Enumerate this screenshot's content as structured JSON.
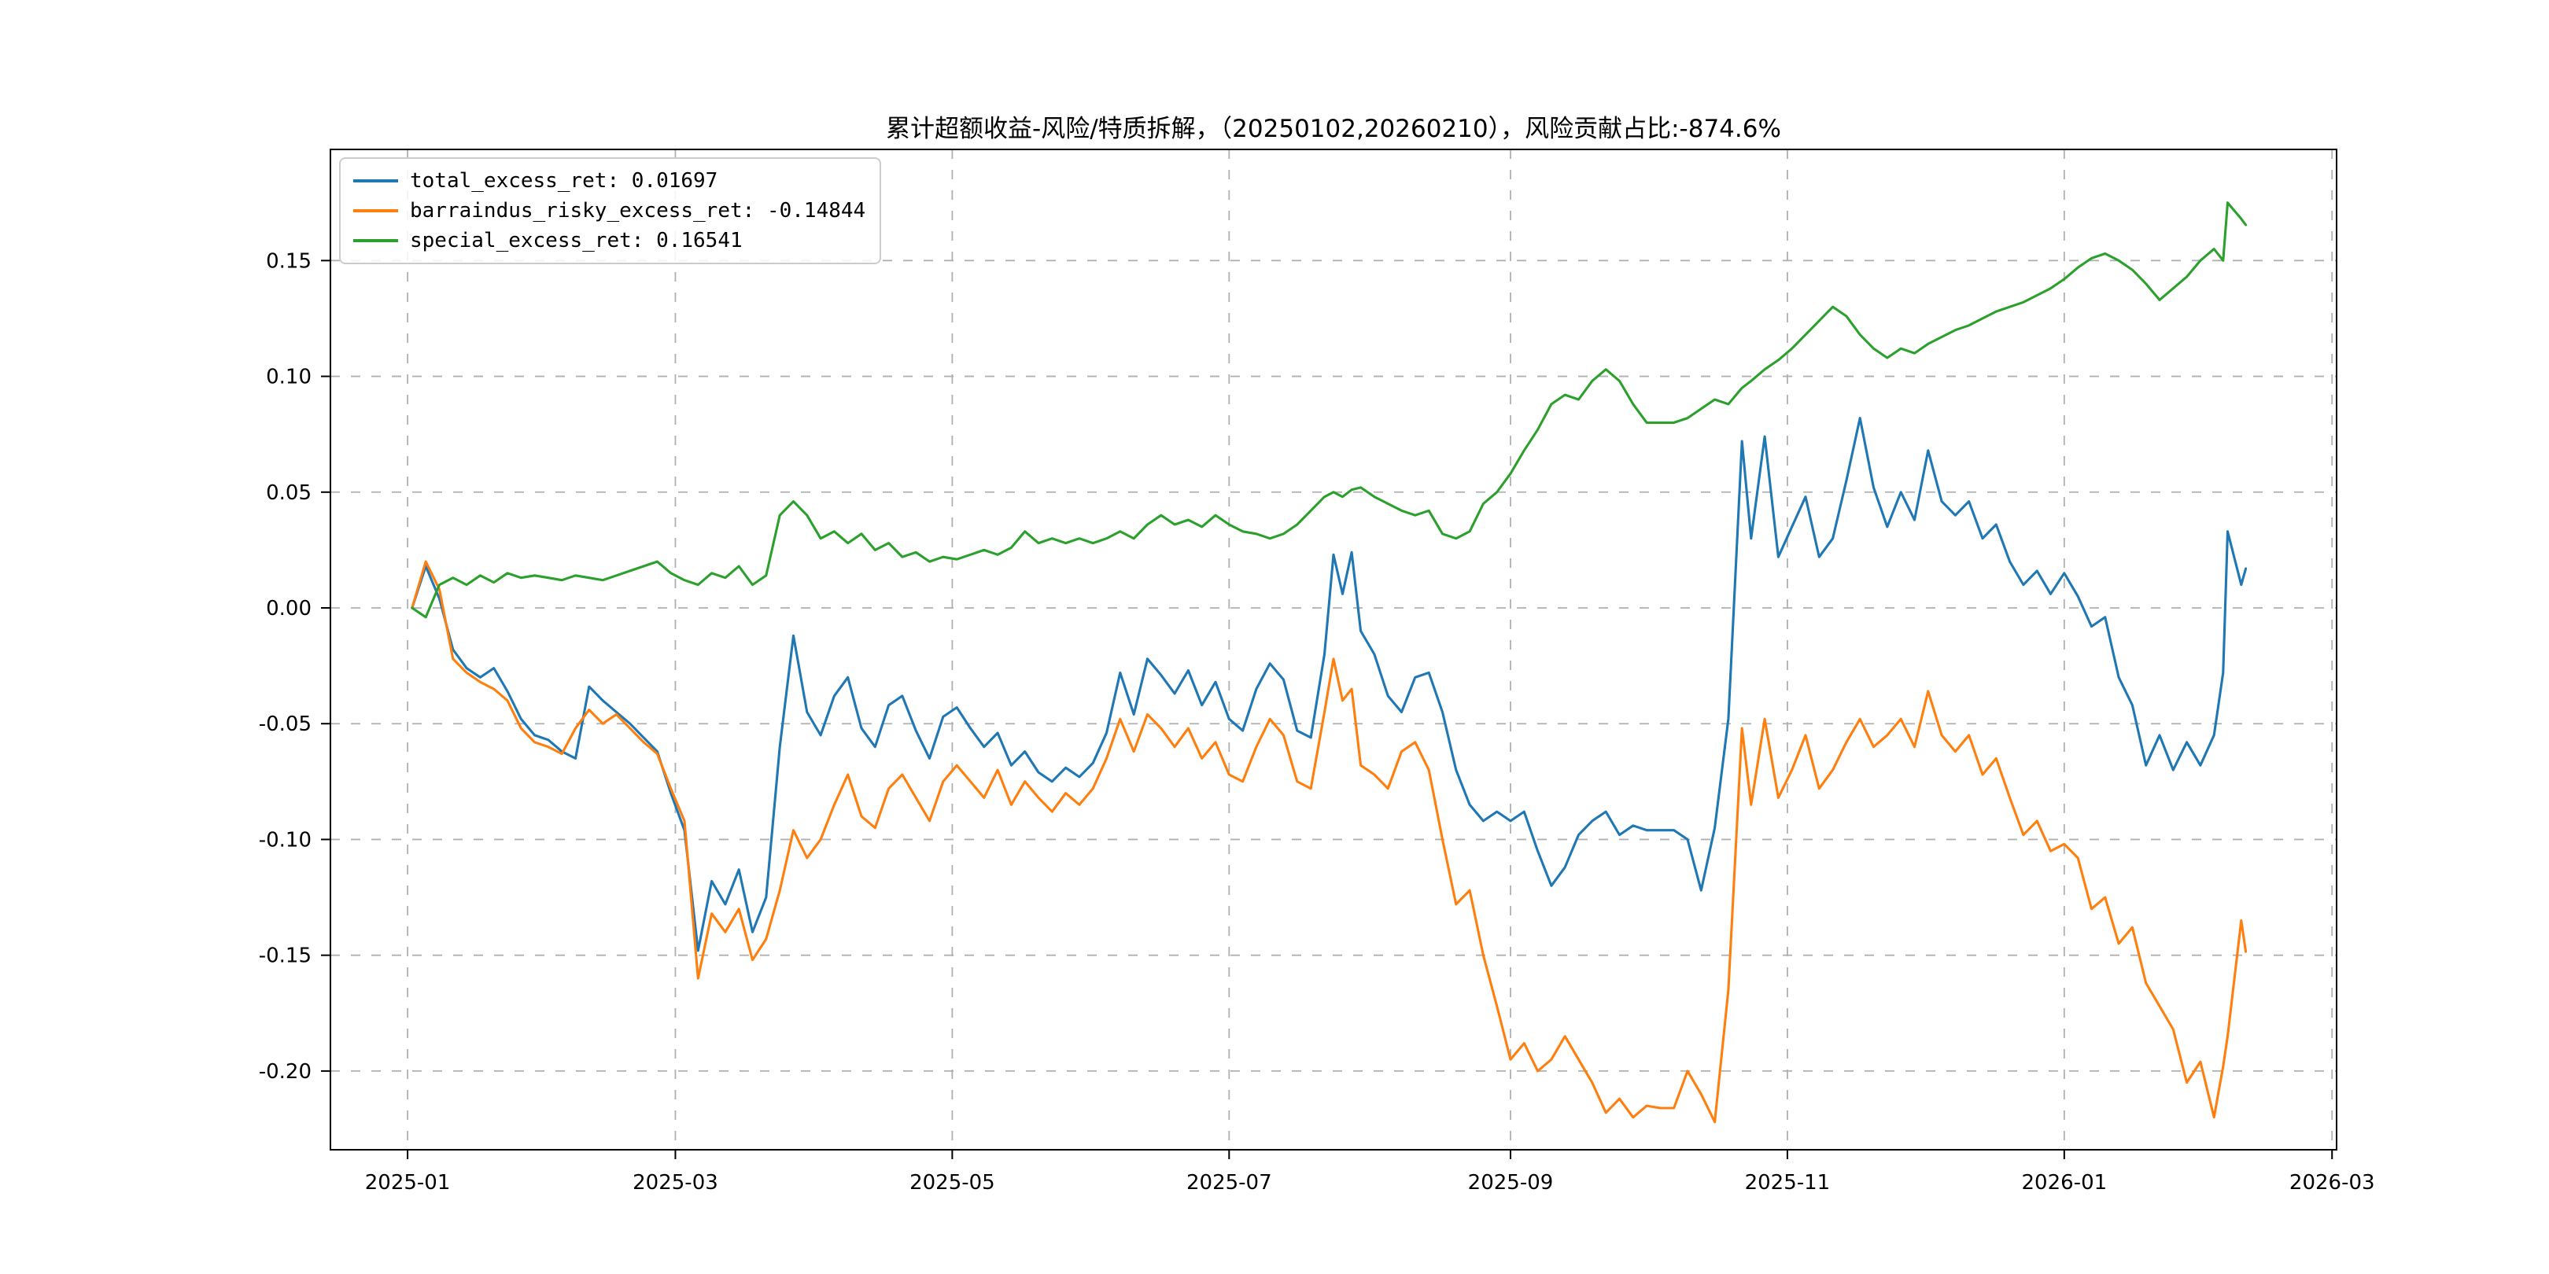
{
  "chart_data": {
    "type": "line",
    "title": "累计超额收益-风险/特质拆解，（20250102,20260210），风险贡献占比:-874.6%",
    "xlabel": "",
    "ylabel": "",
    "grid": {
      "visible": true,
      "style": "dashed",
      "color": "#b0b0b0"
    },
    "legend": {
      "position": "upper-left"
    },
    "x_axis": {
      "range": [
        "2024-12-15",
        "2026-03-02"
      ],
      "ticks": [
        {
          "date": "2025-01-01",
          "label": "2025-01"
        },
        {
          "date": "2025-03-01",
          "label": "2025-03"
        },
        {
          "date": "2025-05-01",
          "label": "2025-05"
        },
        {
          "date": "2025-07-01",
          "label": "2025-07"
        },
        {
          "date": "2025-09-01",
          "label": "2025-09"
        },
        {
          "date": "2025-11-01",
          "label": "2025-11"
        },
        {
          "date": "2026-01-01",
          "label": "2026-01"
        },
        {
          "date": "2026-03-01",
          "label": "2026-03"
        }
      ]
    },
    "y_axis": {
      "range": [
        -0.234,
        0.198
      ],
      "ticks": [
        {
          "value": 0.15,
          "label": "0.15"
        },
        {
          "value": 0.1,
          "label": "0.10"
        },
        {
          "value": 0.05,
          "label": "0.05"
        },
        {
          "value": 0.0,
          "label": "0.00"
        },
        {
          "value": -0.05,
          "label": "-0.05"
        },
        {
          "value": -0.1,
          "label": "-0.10"
        },
        {
          "value": -0.15,
          "label": "-0.15"
        },
        {
          "value": -0.2,
          "label": "-0.20"
        }
      ]
    },
    "dates": [
      "2025-01-02",
      "2025-01-05",
      "2025-01-08",
      "2025-01-11",
      "2025-01-14",
      "2025-01-17",
      "2025-01-20",
      "2025-01-23",
      "2025-01-26",
      "2025-01-29",
      "2025-02-01",
      "2025-02-04",
      "2025-02-07",
      "2025-02-10",
      "2025-02-13",
      "2025-02-16",
      "2025-02-19",
      "2025-02-22",
      "2025-02-25",
      "2025-02-28",
      "2025-03-03",
      "2025-03-06",
      "2025-03-09",
      "2025-03-12",
      "2025-03-15",
      "2025-03-18",
      "2025-03-21",
      "2025-03-24",
      "2025-03-27",
      "2025-03-30",
      "2025-04-02",
      "2025-04-05",
      "2025-04-08",
      "2025-04-11",
      "2025-04-14",
      "2025-04-17",
      "2025-04-20",
      "2025-04-23",
      "2025-04-26",
      "2025-04-29",
      "2025-05-02",
      "2025-05-05",
      "2025-05-08",
      "2025-05-11",
      "2025-05-14",
      "2025-05-17",
      "2025-05-20",
      "2025-05-23",
      "2025-05-26",
      "2025-05-29",
      "2025-06-01",
      "2025-06-04",
      "2025-06-07",
      "2025-06-10",
      "2025-06-13",
      "2025-06-16",
      "2025-06-19",
      "2025-06-22",
      "2025-06-25",
      "2025-06-28",
      "2025-07-01",
      "2025-07-04",
      "2025-07-07",
      "2025-07-10",
      "2025-07-13",
      "2025-07-16",
      "2025-07-19",
      "2025-07-22",
      "2025-07-24",
      "2025-07-26",
      "2025-07-28",
      "2025-07-30",
      "2025-08-02",
      "2025-08-05",
      "2025-08-08",
      "2025-08-11",
      "2025-08-14",
      "2025-08-17",
      "2025-08-20",
      "2025-08-23",
      "2025-08-26",
      "2025-08-29",
      "2025-09-01",
      "2025-09-04",
      "2025-09-07",
      "2025-09-10",
      "2025-09-13",
      "2025-09-16",
      "2025-09-19",
      "2025-09-22",
      "2025-09-25",
      "2025-09-28",
      "2025-10-01",
      "2025-10-04",
      "2025-10-07",
      "2025-10-10",
      "2025-10-13",
      "2025-10-16",
      "2025-10-19",
      "2025-10-22",
      "2025-10-24",
      "2025-10-27",
      "2025-10-30",
      "2025-11-02",
      "2025-11-05",
      "2025-11-08",
      "2025-11-11",
      "2025-11-14",
      "2025-11-17",
      "2025-11-20",
      "2025-11-23",
      "2025-11-26",
      "2025-11-29",
      "2025-12-02",
      "2025-12-05",
      "2025-12-08",
      "2025-12-11",
      "2025-12-14",
      "2025-12-17",
      "2025-12-20",
      "2025-12-23",
      "2025-12-26",
      "2025-12-29",
      "2026-01-01",
      "2026-01-04",
      "2026-01-07",
      "2026-01-10",
      "2026-01-13",
      "2026-01-16",
      "2026-01-19",
      "2026-01-22",
      "2026-01-25",
      "2026-01-28",
      "2026-01-31",
      "2026-02-03",
      "2026-02-05",
      "2026-02-06",
      "2026-02-09",
      "2026-02-10"
    ],
    "series": [
      {
        "name": "total_excess_ret",
        "final_value": 0.01697,
        "legend_label": "total_excess_ret: 0.01697",
        "color": "#1f77b4",
        "values": [
          0.0,
          0.018,
          0.004,
          -0.018,
          -0.026,
          -0.03,
          -0.026,
          -0.036,
          -0.048,
          -0.055,
          -0.057,
          -0.062,
          -0.065,
          -0.034,
          -0.04,
          -0.045,
          -0.05,
          -0.056,
          -0.062,
          -0.08,
          -0.096,
          -0.148,
          -0.118,
          -0.128,
          -0.113,
          -0.14,
          -0.125,
          -0.06,
          -0.012,
          -0.045,
          -0.055,
          -0.038,
          -0.03,
          -0.052,
          -0.06,
          -0.042,
          -0.038,
          -0.053,
          -0.065,
          -0.047,
          -0.043,
          -0.052,
          -0.06,
          -0.054,
          -0.068,
          -0.062,
          -0.071,
          -0.075,
          -0.069,
          -0.073,
          -0.067,
          -0.054,
          -0.028,
          -0.046,
          -0.022,
          -0.029,
          -0.037,
          -0.027,
          -0.042,
          -0.032,
          -0.048,
          -0.053,
          -0.035,
          -0.024,
          -0.031,
          -0.053,
          -0.056,
          -0.02,
          0.023,
          0.006,
          0.024,
          -0.01,
          -0.02,
          -0.038,
          -0.045,
          -0.03,
          -0.028,
          -0.045,
          -0.07,
          -0.085,
          -0.092,
          -0.088,
          -0.092,
          -0.088,
          -0.105,
          -0.12,
          -0.112,
          -0.098,
          -0.092,
          -0.088,
          -0.098,
          -0.094,
          -0.096,
          -0.096,
          -0.096,
          -0.1,
          -0.122,
          -0.095,
          -0.048,
          0.072,
          0.03,
          0.074,
          0.022,
          0.035,
          0.048,
          0.022,
          0.03,
          0.055,
          0.082,
          0.052,
          0.035,
          0.05,
          0.038,
          0.068,
          0.046,
          0.04,
          0.046,
          0.03,
          0.036,
          0.02,
          0.01,
          0.016,
          0.006,
          0.015,
          0.005,
          -0.008,
          -0.004,
          -0.03,
          -0.042,
          -0.068,
          -0.055,
          -0.07,
          -0.058,
          -0.068,
          -0.055,
          -0.028,
          0.033,
          0.01,
          0.01697
        ]
      },
      {
        "name": "barraindus_risky_excess_ret",
        "final_value": -0.14844,
        "legend_label": "barraindus_risky_excess_ret: -0.14844",
        "color": "#ff7f0e",
        "values": [
          0.0,
          0.02,
          0.008,
          -0.022,
          -0.028,
          -0.032,
          -0.035,
          -0.04,
          -0.052,
          -0.058,
          -0.06,
          -0.063,
          -0.052,
          -0.044,
          -0.05,
          -0.046,
          -0.052,
          -0.058,
          -0.063,
          -0.078,
          -0.092,
          -0.16,
          -0.132,
          -0.14,
          -0.13,
          -0.152,
          -0.143,
          -0.122,
          -0.096,
          -0.108,
          -0.1,
          -0.085,
          -0.072,
          -0.09,
          -0.095,
          -0.078,
          -0.072,
          -0.082,
          -0.092,
          -0.075,
          -0.068,
          -0.075,
          -0.082,
          -0.07,
          -0.085,
          -0.075,
          -0.082,
          -0.088,
          -0.08,
          -0.085,
          -0.078,
          -0.065,
          -0.048,
          -0.062,
          -0.046,
          -0.052,
          -0.06,
          -0.052,
          -0.065,
          -0.058,
          -0.072,
          -0.075,
          -0.06,
          -0.048,
          -0.055,
          -0.075,
          -0.078,
          -0.045,
          -0.022,
          -0.04,
          -0.035,
          -0.068,
          -0.072,
          -0.078,
          -0.062,
          -0.058,
          -0.07,
          -0.1,
          -0.128,
          -0.122,
          -0.15,
          -0.172,
          -0.195,
          -0.188,
          -0.2,
          -0.195,
          -0.185,
          -0.195,
          -0.205,
          -0.218,
          -0.212,
          -0.22,
          -0.215,
          -0.216,
          -0.216,
          -0.2,
          -0.21,
          -0.222,
          -0.165,
          -0.052,
          -0.085,
          -0.048,
          -0.082,
          -0.07,
          -0.055,
          -0.078,
          -0.07,
          -0.058,
          -0.048,
          -0.06,
          -0.055,
          -0.048,
          -0.06,
          -0.036,
          -0.055,
          -0.062,
          -0.055,
          -0.072,
          -0.065,
          -0.082,
          -0.098,
          -0.092,
          -0.105,
          -0.102,
          -0.108,
          -0.13,
          -0.125,
          -0.145,
          -0.138,
          -0.162,
          -0.172,
          -0.182,
          -0.205,
          -0.196,
          -0.22,
          -0.198,
          -0.185,
          -0.135,
          -0.14844
        ]
      },
      {
        "name": "special_excess_ret",
        "final_value": 0.16541,
        "legend_label": "special_excess_ret: 0.16541",
        "color": "#2ca02c",
        "values": [
          0.0,
          -0.004,
          0.01,
          0.013,
          0.01,
          0.014,
          0.011,
          0.015,
          0.013,
          0.014,
          0.013,
          0.012,
          0.014,
          0.013,
          0.012,
          0.014,
          0.016,
          0.018,
          0.02,
          0.015,
          0.012,
          0.01,
          0.015,
          0.013,
          0.018,
          0.01,
          0.014,
          0.04,
          0.046,
          0.04,
          0.03,
          0.033,
          0.028,
          0.032,
          0.025,
          0.028,
          0.022,
          0.024,
          0.02,
          0.022,
          0.021,
          0.023,
          0.025,
          0.023,
          0.026,
          0.033,
          0.028,
          0.03,
          0.028,
          0.03,
          0.028,
          0.03,
          0.033,
          0.03,
          0.036,
          0.04,
          0.036,
          0.038,
          0.035,
          0.04,
          0.036,
          0.033,
          0.032,
          0.03,
          0.032,
          0.036,
          0.042,
          0.048,
          0.05,
          0.048,
          0.051,
          0.052,
          0.048,
          0.045,
          0.042,
          0.04,
          0.042,
          0.032,
          0.03,
          0.033,
          0.045,
          0.05,
          0.058,
          0.068,
          0.077,
          0.088,
          0.092,
          0.09,
          0.098,
          0.103,
          0.098,
          0.088,
          0.08,
          0.08,
          0.08,
          0.082,
          0.086,
          0.09,
          0.088,
          0.095,
          0.098,
          0.103,
          0.107,
          0.112,
          0.118,
          0.124,
          0.13,
          0.126,
          0.118,
          0.112,
          0.108,
          0.112,
          0.11,
          0.114,
          0.117,
          0.12,
          0.122,
          0.125,
          0.128,
          0.13,
          0.132,
          0.135,
          0.138,
          0.142,
          0.147,
          0.151,
          0.153,
          0.15,
          0.146,
          0.14,
          0.133,
          0.138,
          0.143,
          0.15,
          0.155,
          0.15,
          0.175,
          0.168,
          0.16541
        ]
      }
    ]
  }
}
